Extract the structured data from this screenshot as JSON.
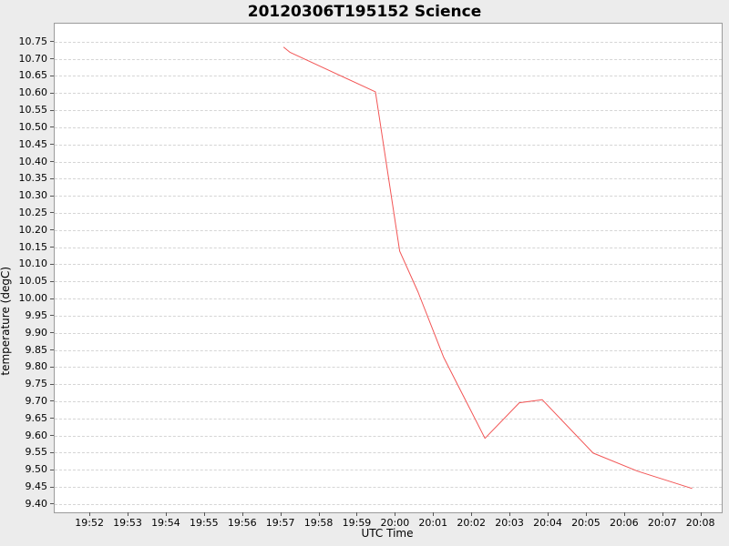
{
  "figure": {
    "background_color": "#ececec",
    "plot_background_color": "#ffffff",
    "spine_color": "#9b9b9b",
    "grid_color": "#d5d5d5"
  },
  "chart_data": {
    "type": "line",
    "title": "20120306T195152 Science",
    "xlabel": "UTC Time",
    "ylabel": "temperature (degC)",
    "grid": "horizontal-dashed",
    "legend": "none",
    "x_tick_labels": [
      "19:52",
      "19:53",
      "19:54",
      "19:55",
      "19:56",
      "19:57",
      "19:58",
      "19:59",
      "20:00",
      "20:01",
      "20:02",
      "20:03",
      "20:04",
      "20:05",
      "20:06",
      "20:07",
      "20:08"
    ],
    "y_tick_labels": [
      "10.75",
      "10.70",
      "10.65",
      "10.60",
      "10.55",
      "10.50",
      "10.45",
      "10.40",
      "10.35",
      "10.30",
      "10.25",
      "10.20",
      "10.15",
      "10.10",
      "10.05",
      "10.00",
      "9.95",
      "9.90",
      "9.85",
      "9.80",
      "9.75",
      "9.70",
      "9.65",
      "9.60",
      "9.55",
      "9.50",
      "9.45",
      "9.40"
    ],
    "xlim": [
      "19:51:04",
      "20:08:32"
    ],
    "ylim": [
      9.377,
      10.804
    ],
    "series": [
      {
        "name": "temperature",
        "color": "#f25555",
        "points": [
          {
            "t": "19:57:04",
            "v": 10.735
          },
          {
            "t": "19:57:14",
            "v": 10.72
          },
          {
            "t": "19:59:28",
            "v": 10.605
          },
          {
            "t": "20:00:06",
            "v": 10.14
          },
          {
            "t": "20:00:35",
            "v": 10.02
          },
          {
            "t": "20:01:15",
            "v": 9.83
          },
          {
            "t": "20:02:20",
            "v": 9.593
          },
          {
            "t": "20:03:14",
            "v": 9.697
          },
          {
            "t": "20:03:50",
            "v": 9.706
          },
          {
            "t": "20:05:10",
            "v": 9.55
          },
          {
            "t": "20:06:20",
            "v": 9.497
          },
          {
            "t": "20:07:45",
            "v": 9.447
          }
        ]
      }
    ]
  }
}
